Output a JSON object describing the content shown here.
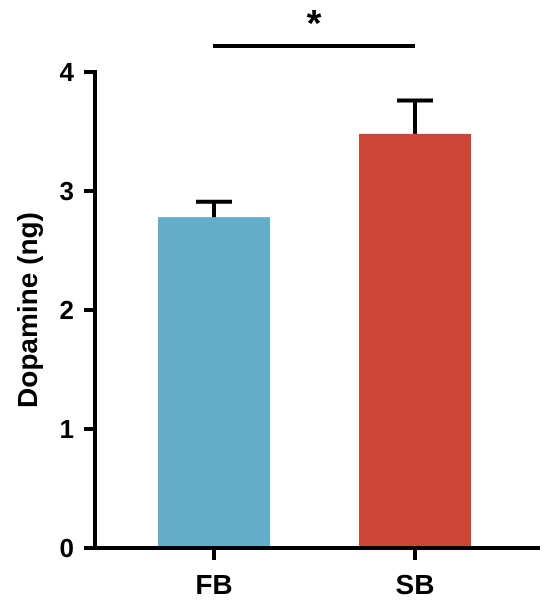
{
  "chart_data": {
    "type": "bar",
    "categories": [
      "FB",
      "SB"
    ],
    "values": [
      2.78,
      3.48
    ],
    "errors": [
      0.13,
      0.28
    ],
    "colors": [
      "#62aecb",
      "#cc4537"
    ],
    "title": "",
    "xlabel": "",
    "ylabel": "Dopamine (ng)",
    "ylim": [
      0,
      4
    ],
    "yticks": [
      0,
      1,
      2,
      3,
      4
    ],
    "significance": {
      "between": [
        "FB",
        "SB"
      ],
      "label": "*"
    },
    "grid": false,
    "legend": "none"
  }
}
